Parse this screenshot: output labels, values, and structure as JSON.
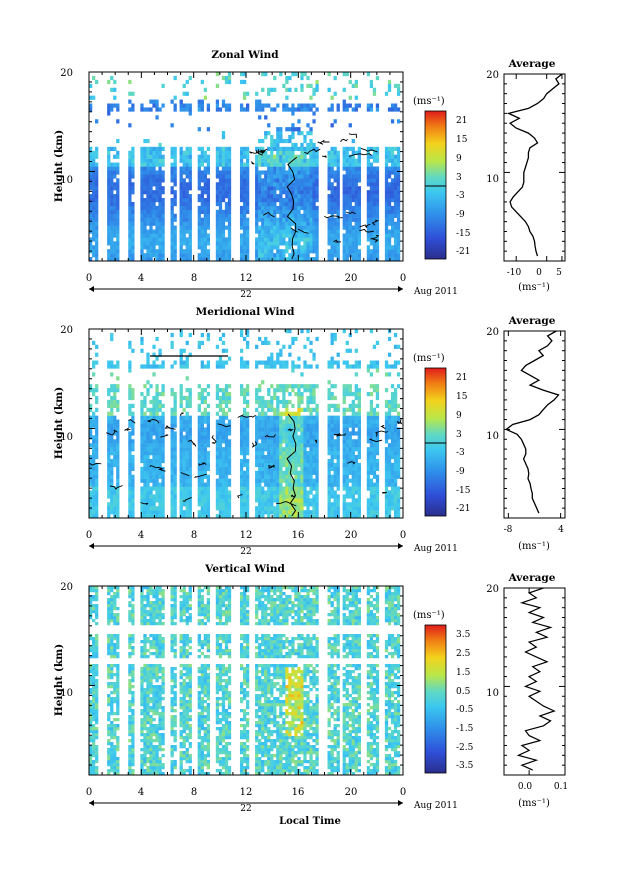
{
  "figure": {
    "date_label": "Aug 2011",
    "xlabel_bottom": "Local Time"
  },
  "chart_data": [
    {
      "type": "heatmap",
      "title": "Zonal Wind",
      "ylabel": "Height (km)",
      "x_ticks": [
        "0",
        "4",
        "8",
        "12",
        "16",
        "20",
        "0"
      ],
      "x_day": "22",
      "xlim": [
        0,
        24
      ],
      "y_ticks": [
        "10",
        "20"
      ],
      "ylim": [
        1,
        20
      ],
      "colorbar": {
        "unit": "(ms⁻¹)",
        "ticks": [
          "21",
          "15",
          "9",
          "3",
          "-3",
          "-9",
          "-15",
          "-21"
        ],
        "range": [
          -24,
          24
        ]
      },
      "regime": "zonal",
      "average": {
        "title": "Average",
        "xlabel": "(ms⁻¹)",
        "x_ticks": [
          "-10",
          "0",
          "5"
        ],
        "xlim": [
          -14,
          6
        ],
        "y_ticks": [
          "10",
          "20"
        ],
        "heights": [
          1.5,
          2,
          2.5,
          3,
          3.5,
          4,
          4.5,
          5,
          5.5,
          6,
          6.5,
          7,
          7.5,
          8,
          8.5,
          9,
          9.5,
          10,
          10.5,
          11,
          11.5,
          12,
          12.5,
          13,
          13.5,
          14,
          14.5,
          15,
          15.5,
          16,
          16.5,
          17,
          17.5,
          18,
          18.5,
          19,
          19.5,
          20
        ],
        "values": [
          -3,
          -3.5,
          -3.8,
          -4,
          -4.5,
          -5.5,
          -6,
          -7,
          -8.5,
          -10,
          -11.5,
          -12,
          -11,
          -9.5,
          -8,
          -7.5,
          -7.5,
          -7.5,
          -7,
          -6.5,
          -6,
          -6,
          -5.5,
          -3,
          -4,
          -6,
          -10,
          -12,
          -9,
          -12.5,
          -6,
          -3,
          -1,
          0,
          2,
          4,
          3,
          5
        ]
      }
    },
    {
      "type": "heatmap",
      "title": "Meridional Wind",
      "ylabel": "Height (km)",
      "x_ticks": [
        "0",
        "4",
        "8",
        "12",
        "16",
        "20",
        "0"
      ],
      "x_day": "22",
      "xlim": [
        0,
        24
      ],
      "y_ticks": [
        "10",
        "20"
      ],
      "ylim": [
        1,
        20
      ],
      "colorbar": {
        "unit": "(ms⁻¹)",
        "ticks": [
          "21",
          "15",
          "9",
          "3",
          "-3",
          "-9",
          "-15",
          "-21"
        ],
        "range": [
          -24,
          24
        ]
      },
      "regime": "meridional",
      "average": {
        "title": "Average",
        "xlabel": "(ms⁻¹)",
        "x_ticks": [
          "-8",
          "4"
        ],
        "xlim": [
          -9,
          5
        ],
        "y_ticks": [
          "10",
          "20"
        ],
        "heights": [
          1.5,
          2,
          2.5,
          3,
          3.5,
          4,
          4.5,
          5,
          5.5,
          6,
          6.5,
          7,
          7.5,
          8,
          8.5,
          9,
          9.5,
          10,
          10.5,
          11,
          11.5,
          12,
          12.5,
          13,
          13.5,
          14,
          14.5,
          15,
          15.5,
          16,
          16.5,
          17,
          17.5,
          18,
          18.5,
          19,
          19.5,
          20
        ],
        "values": [
          -1,
          -1.5,
          -2,
          -2.5,
          -2.5,
          -2.8,
          -3,
          -3.5,
          -3.3,
          -3.5,
          -4,
          -4.5,
          -4,
          -4,
          -4.5,
          -5,
          -6,
          -8.5,
          -7,
          -3,
          -1,
          0,
          1,
          2.5,
          3.5,
          0,
          -3,
          -1,
          -3,
          -5,
          -4,
          -2,
          0,
          -1,
          1,
          2,
          1,
          3
        ]
      }
    },
    {
      "type": "heatmap",
      "title": "Vertical Wind",
      "ylabel": "Height (km)",
      "x_ticks": [
        "0",
        "4",
        "8",
        "12",
        "16",
        "20",
        "0"
      ],
      "x_day": "22",
      "xlim": [
        0,
        24
      ],
      "y_ticks": [
        "10",
        "20"
      ],
      "ylim": [
        1,
        20
      ],
      "colorbar": {
        "unit": "(ms⁻¹)",
        "ticks": [
          "3.5",
          "2.5",
          "1.5",
          "0.5",
          "-0.5",
          "-1.5",
          "-2.5",
          "-3.5"
        ],
        "range": [
          -4,
          4
        ]
      },
      "regime": "vertical",
      "average": {
        "title": "Average",
        "xlabel": "(ms⁻¹)",
        "x_ticks": [
          "0.0",
          "0.1"
        ],
        "xlim": [
          -0.07,
          0.1
        ],
        "y_ticks": [
          "10",
          "20"
        ],
        "heights": [
          1.5,
          2,
          2.5,
          3,
          3.5,
          4,
          4.5,
          5,
          5.5,
          6,
          6.5,
          7,
          7.5,
          8,
          8.5,
          9,
          9.5,
          10,
          10.5,
          11,
          11.5,
          12,
          12.5,
          13,
          13.5,
          14,
          14.5,
          15,
          15.5,
          16,
          16.5,
          17,
          17.5,
          18,
          18.5,
          19,
          19.5,
          20
        ],
        "values": [
          0.01,
          -0.02,
          0.02,
          -0.03,
          0.0,
          -0.02,
          0.03,
          0.0,
          -0.01,
          0.04,
          0.06,
          0.03,
          0.07,
          0.04,
          0.02,
          0.0,
          0.03,
          -0.01,
          0.02,
          0.0,
          0.03,
          0.01,
          0.05,
          0.02,
          -0.01,
          0.02,
          0.0,
          0.05,
          0.02,
          0.06,
          0.01,
          0.04,
          0.0,
          0.03,
          -0.02,
          0.02,
          0.0,
          0.04
        ]
      }
    }
  ]
}
